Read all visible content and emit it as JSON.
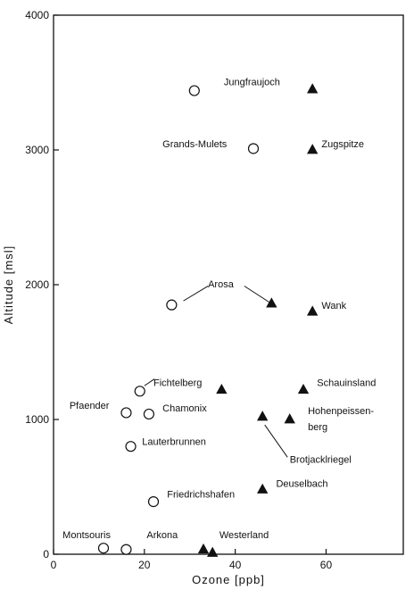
{
  "chart_data": {
    "type": "scatter",
    "xlabel": "Ozone [ppb]",
    "ylabel": "Altitude [msl]",
    "xlim": [
      0,
      77
    ],
    "ylim": [
      0,
      4000
    ],
    "x_ticks": [
      0,
      20,
      40,
      60
    ],
    "y_ticks": [
      0,
      1000,
      2000,
      3000,
      4000
    ],
    "x_tick_labels": [
      "0",
      "20",
      "40",
      "60"
    ],
    "y_tick_labels": [
      "0",
      "1000",
      "2000",
      "3000",
      "4000"
    ],
    "grid": false,
    "legend": "none",
    "series": [
      {
        "marker": "open-circle",
        "points": [
          {
            "x": 31,
            "y": 3440
          },
          {
            "x": 44,
            "y": 3010
          },
          {
            "x": 26,
            "y": 1850
          },
          {
            "x": 19,
            "y": 1210
          },
          {
            "x": 16,
            "y": 1050
          },
          {
            "x": 21,
            "y": 1040
          },
          {
            "x": 17,
            "y": 800
          },
          {
            "x": 22,
            "y": 390
          },
          {
            "x": 11,
            "y": 45
          },
          {
            "x": 16,
            "y": 35
          }
        ]
      },
      {
        "marker": "filled-triangle",
        "points": [
          {
            "x": 57,
            "y": 3450
          },
          {
            "x": 57,
            "y": 3000
          },
          {
            "x": 48,
            "y": 1860
          },
          {
            "x": 57,
            "y": 1800
          },
          {
            "x": 37,
            "y": 1220
          },
          {
            "x": 55,
            "y": 1220
          },
          {
            "x": 46,
            "y": 1020
          },
          {
            "x": 52,
            "y": 1000
          },
          {
            "x": 46,
            "y": 480
          },
          {
            "x": 33,
            "y": 35
          },
          {
            "x": 35,
            "y": 10
          }
        ]
      }
    ],
    "annotations": [
      {
        "text": "Jungfraujoch",
        "x": 37.5,
        "y": 3480,
        "anchor": "start"
      },
      {
        "text": "Grands-Mulets",
        "x": 24,
        "y": 3020,
        "anchor": "start"
      },
      {
        "text": "Zugspitze",
        "x": 59,
        "y": 3020,
        "anchor": "start"
      },
      {
        "text": "Arosa",
        "x": 34,
        "y": 1980,
        "anchor": "start"
      },
      {
        "text": "Wank",
        "x": 59,
        "y": 1820,
        "anchor": "start"
      },
      {
        "text": "Fichtelberg",
        "x": 22,
        "y": 1250,
        "anchor": "start"
      },
      {
        "text": "Schauinsland",
        "x": 58,
        "y": 1250,
        "anchor": "start"
      },
      {
        "text": "Pfaender",
        "x": 3.5,
        "y": 1080,
        "anchor": "start"
      },
      {
        "text": "Chamonix",
        "x": 24,
        "y": 1060,
        "anchor": "start"
      },
      {
        "text": "Hohenpeissen-",
        "x": 56,
        "y": 1040,
        "anchor": "start"
      },
      {
        "text": "berg",
        "x": 56,
        "y": 920,
        "anchor": "start"
      },
      {
        "text": "Lauterbrunnen",
        "x": 19.5,
        "y": 810,
        "anchor": "start"
      },
      {
        "text": "Brotjacklriegel",
        "x": 52,
        "y": 680,
        "anchor": "start"
      },
      {
        "text": "Deuselbach",
        "x": 49,
        "y": 500,
        "anchor": "start"
      },
      {
        "text": "Friedrichshafen",
        "x": 25,
        "y": 420,
        "anchor": "start"
      },
      {
        "text": "Montsouris",
        "x": 2,
        "y": 120,
        "anchor": "start"
      },
      {
        "text": "Arkona",
        "x": 20.5,
        "y": 120,
        "anchor": "start"
      },
      {
        "text": "Westerland",
        "x": 36.5,
        "y": 120,
        "anchor": "start"
      }
    ],
    "leaders": [
      {
        "from": [
          28.6,
          1880
        ],
        "to": [
          34,
          1990
        ]
      },
      {
        "from": [
          42,
          1990
        ],
        "to": [
          47.5,
          1870
        ]
      },
      {
        "from": [
          20,
          1250
        ],
        "to": [
          22.2,
          1300
        ]
      },
      {
        "from": [
          46.5,
          960
        ],
        "to": [
          51.5,
          720
        ]
      }
    ]
  }
}
